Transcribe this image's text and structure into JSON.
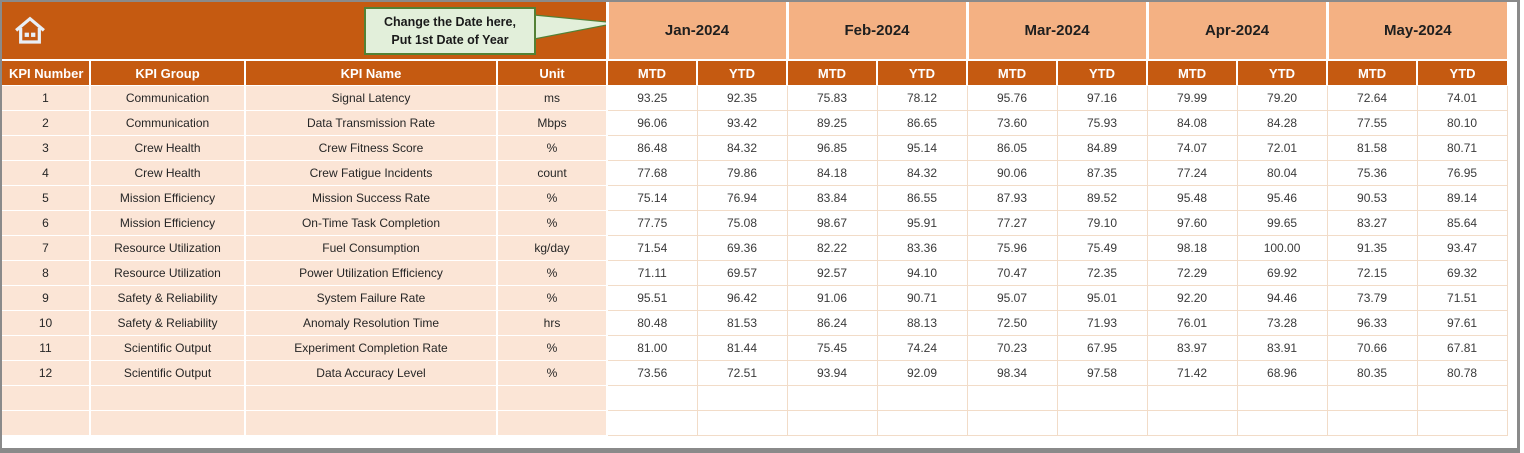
{
  "banner": {
    "callout": {
      "line1": "Change the Date here,",
      "line2": "Put 1st Date of Year"
    },
    "home_icon": "house"
  },
  "months": [
    "Jan-2024",
    "Feb-2024",
    "Mar-2024",
    "Apr-2024",
    "May-2024"
  ],
  "sub_headers": [
    "MTD",
    "YTD"
  ],
  "column_headers": [
    "KPI Number",
    "KPI Group",
    "KPI Name",
    "Unit"
  ],
  "rows": [
    {
      "num": "1",
      "group": "Communication",
      "name": "Signal Latency",
      "unit": "ms",
      "values": [
        "93.25",
        "92.35",
        "75.83",
        "78.12",
        "95.76",
        "97.16",
        "79.99",
        "79.20",
        "72.64",
        "74.01"
      ]
    },
    {
      "num": "2",
      "group": "Communication",
      "name": "Data Transmission Rate",
      "unit": "Mbps",
      "values": [
        "96.06",
        "93.42",
        "89.25",
        "86.65",
        "73.60",
        "75.93",
        "84.08",
        "84.28",
        "77.55",
        "80.10"
      ]
    },
    {
      "num": "3",
      "group": "Crew Health",
      "name": "Crew Fitness Score",
      "unit": "%",
      "values": [
        "86.48",
        "84.32",
        "96.85",
        "95.14",
        "86.05",
        "84.89",
        "74.07",
        "72.01",
        "81.58",
        "80.71"
      ]
    },
    {
      "num": "4",
      "group": "Crew Health",
      "name": "Crew Fatigue Incidents",
      "unit": "count",
      "values": [
        "77.68",
        "79.86",
        "84.18",
        "84.32",
        "90.06",
        "87.35",
        "77.24",
        "80.04",
        "75.36",
        "76.95"
      ]
    },
    {
      "num": "5",
      "group": "Mission Efficiency",
      "name": "Mission Success Rate",
      "unit": "%",
      "values": [
        "75.14",
        "76.94",
        "83.84",
        "86.55",
        "87.93",
        "89.52",
        "95.48",
        "95.46",
        "90.53",
        "89.14"
      ]
    },
    {
      "num": "6",
      "group": "Mission Efficiency",
      "name": "On-Time Task Completion",
      "unit": "%",
      "values": [
        "77.75",
        "75.08",
        "98.67",
        "95.91",
        "77.27",
        "79.10",
        "97.60",
        "99.65",
        "83.27",
        "85.64"
      ]
    },
    {
      "num": "7",
      "group": "Resource Utilization",
      "name": "Fuel Consumption",
      "unit": "kg/day",
      "values": [
        "71.54",
        "69.36",
        "82.22",
        "83.36",
        "75.96",
        "75.49",
        "98.18",
        "100.00",
        "91.35",
        "93.47"
      ]
    },
    {
      "num": "8",
      "group": "Resource Utilization",
      "name": "Power Utilization Efficiency",
      "unit": "%",
      "values": [
        "71.11",
        "69.57",
        "92.57",
        "94.10",
        "70.47",
        "72.35",
        "72.29",
        "69.92",
        "72.15",
        "69.32"
      ]
    },
    {
      "num": "9",
      "group": "Safety & Reliability",
      "name": "System Failure Rate",
      "unit": "%",
      "values": [
        "95.51",
        "96.42",
        "91.06",
        "90.71",
        "95.07",
        "95.01",
        "92.20",
        "94.46",
        "73.79",
        "71.51"
      ]
    },
    {
      "num": "10",
      "group": "Safety & Reliability",
      "name": "Anomaly Resolution Time",
      "unit": "hrs",
      "values": [
        "80.48",
        "81.53",
        "86.24",
        "88.13",
        "72.50",
        "71.93",
        "76.01",
        "73.28",
        "96.33",
        "97.61"
      ]
    },
    {
      "num": "11",
      "group": "Scientific Output",
      "name": "Experiment Completion Rate",
      "unit": "%",
      "values": [
        "81.00",
        "81.44",
        "75.45",
        "74.24",
        "70.23",
        "67.95",
        "83.97",
        "83.91",
        "70.66",
        "67.81"
      ]
    },
    {
      "num": "12",
      "group": "Scientific Output",
      "name": "Data Accuracy Level",
      "unit": "%",
      "values": [
        "73.56",
        "72.51",
        "93.94",
        "92.09",
        "98.34",
        "97.58",
        "71.42",
        "68.96",
        "80.35",
        "80.78"
      ]
    }
  ],
  "empty_row_count": 2,
  "colors": {
    "header_orange": "#C55A11",
    "month_salmon": "#F4B183",
    "row_peach": "#FBE5D6",
    "callout_green": "#E2EFDA",
    "callout_border": "#538135",
    "grid_line": "#F2DCC8",
    "window_border": "#8A8A8A"
  }
}
